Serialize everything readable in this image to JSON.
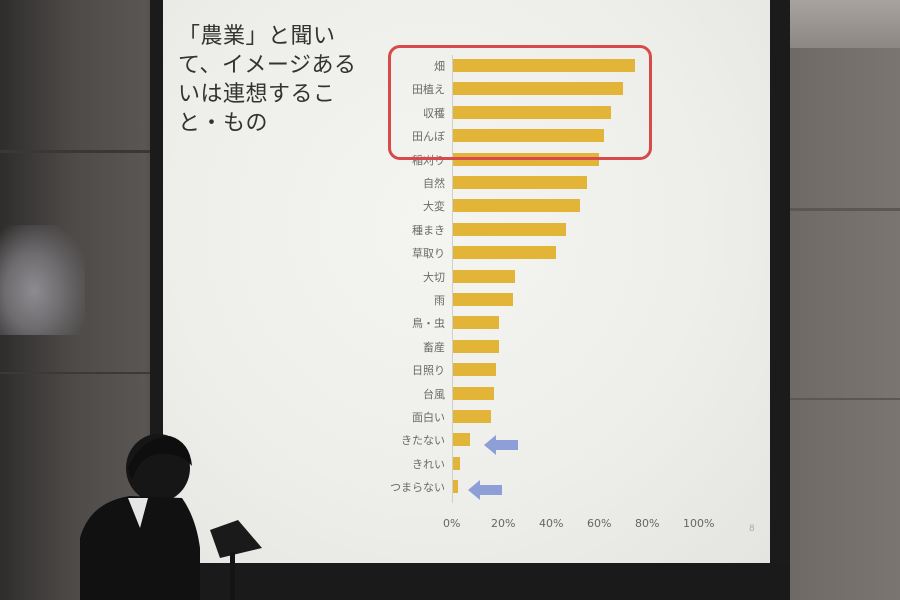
{
  "slide": {
    "title": "「農業」と聞いて、イメージあるいは連想すること・もの",
    "page_number": "8"
  },
  "chart_data": {
    "type": "bar",
    "orientation": "horizontal",
    "categories": [
      "畑",
      "田植え",
      "収穫",
      "田んぼ",
      "稲刈り",
      "自然",
      "大変",
      "種まき",
      "草取り",
      "大切",
      "雨",
      "鳥・虫",
      "畜産",
      "日照り",
      "台風",
      "面白い",
      "きたない",
      "きれい",
      "つまらない"
    ],
    "values": [
      76,
      71,
      66,
      63,
      61,
      56,
      53,
      47,
      43,
      26,
      25,
      19,
      19,
      18,
      17,
      16,
      7,
      3,
      2
    ],
    "xlim": [
      0,
      100
    ],
    "x_ticks": [
      "0%",
      "20%",
      "40%",
      "60%",
      "80%",
      "100%"
    ],
    "highlighted_categories": [
      "畑",
      "田植え",
      "収穫",
      "田んぼ"
    ],
    "arrow_marked_categories": [
      "きたない",
      "つまらない"
    ],
    "bar_color": "#e2b539",
    "highlight_color": "#d84a4a",
    "arrow_color": "#8e9fd8"
  }
}
